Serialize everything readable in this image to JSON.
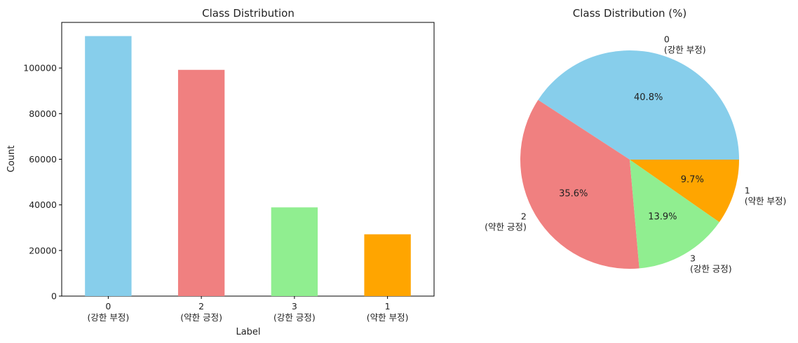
{
  "chart_data": [
    {
      "type": "bar",
      "title": "Class Distribution",
      "xlabel": "Label",
      "ylabel": "Count",
      "categories": [
        {
          "id": "0",
          "sub": "(강한 부정)"
        },
        {
          "id": "2",
          "sub": "(약한 긍정)"
        },
        {
          "id": "3",
          "sub": "(강한 긍정)"
        },
        {
          "id": "1",
          "sub": "(약한 부정)"
        }
      ],
      "values": [
        114000,
        99200,
        38900,
        27100
      ],
      "colors": [
        "#87CEEB",
        "#F08080",
        "#90EE90",
        "#FFA500"
      ],
      "ylim": [
        0,
        120000
      ],
      "yticks": [
        {
          "value": 0,
          "label": "0"
        },
        {
          "value": 20000,
          "label": "20000"
        },
        {
          "value": 40000,
          "label": "40000"
        },
        {
          "value": 60000,
          "label": "60000"
        },
        {
          "value": 80000,
          "label": "80000"
        },
        {
          "value": 100000,
          "label": "100000"
        }
      ],
      "grid": false
    },
    {
      "type": "pie",
      "title": "Class Distribution (%)",
      "slices": [
        {
          "id": "0",
          "sub": "(강한 부정)",
          "value": 40.8,
          "pct_label": "40.8%",
          "color": "#87CEEB"
        },
        {
          "id": "2",
          "sub": "(약한 긍정)",
          "value": 35.6,
          "pct_label": "35.6%",
          "color": "#F08080"
        },
        {
          "id": "3",
          "sub": "(강한 긍정)",
          "value": 13.9,
          "pct_label": "13.9%",
          "color": "#90EE90"
        },
        {
          "id": "1",
          "sub": "(약한 부정)",
          "value": 9.7,
          "pct_label": "9.7%",
          "color": "#FFA500"
        }
      ],
      "start_angle": 0,
      "direction": "counterclockwise"
    }
  ]
}
